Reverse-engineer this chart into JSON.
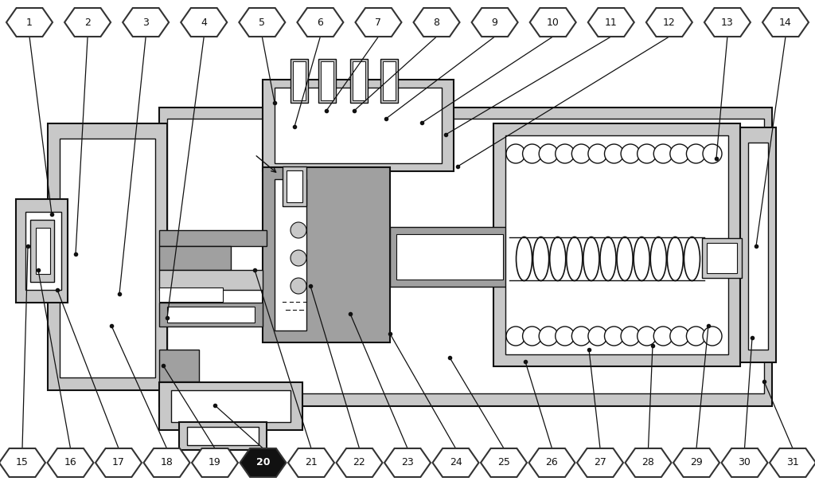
{
  "top_labels": [
    1,
    2,
    3,
    4,
    5,
    6,
    7,
    8,
    9,
    10,
    11,
    12,
    13,
    14
  ],
  "bottom_labels": [
    15,
    16,
    17,
    18,
    19,
    20,
    21,
    22,
    23,
    24,
    25,
    26,
    27,
    28,
    29,
    30,
    31
  ],
  "special_label": 20,
  "bg_color": "#ffffff",
  "hex_fill": "#ffffff",
  "hex_edge": "#333333",
  "special_fill": "#111111",
  "special_text": "#ffffff",
  "normal_text": "#111111",
  "line_color": "#111111",
  "lf": "#c8c8c8",
  "mf": "#a0a0a0",
  "df": "#888888"
}
